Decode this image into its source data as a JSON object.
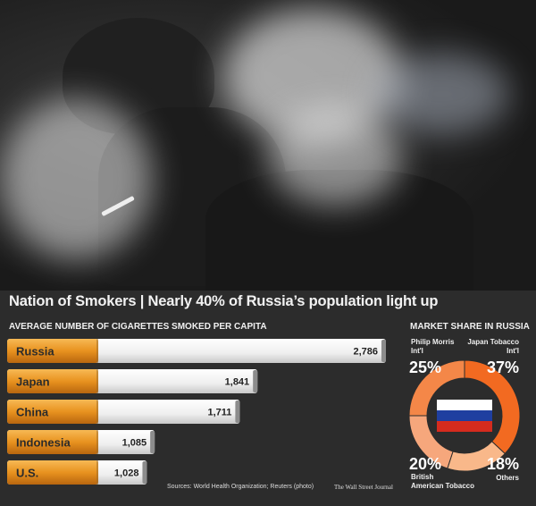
{
  "headline": "Nation of Smokers | Nearly 40% of Russia’s population light up",
  "footer": {
    "sources": "Sources: World Health Organization; Reuters (photo)",
    "credit": "The Wall Street Journal"
  },
  "chart_data": [
    {
      "type": "bar",
      "title": "AVERAGE NUMBER OF CIGARETTES SMOKED PER CAPITA",
      "categories": [
        "Russia",
        "Japan",
        "China",
        "Indonesia",
        "U.S."
      ],
      "values": [
        2786,
        1841,
        1711,
        1085,
        1028
      ],
      "value_labels": [
        "2,786",
        "1,841",
        "1,711",
        "1,085",
        "1,028"
      ],
      "style": "cigarette-bars"
    },
    {
      "type": "pie",
      "title": "MARKET SHARE IN RUSSIA",
      "center_icon": "russian-flag",
      "slices": [
        {
          "label": "Japan Tobacco Int'l",
          "value": 37,
          "value_label": "37%",
          "color": "#f26a21"
        },
        {
          "label": "Others",
          "value": 18,
          "value_label": "18%",
          "color": "#f9b88a"
        },
        {
          "label": "British American Tobacco",
          "value": 20,
          "value_label": "20%",
          "color": "#f6a77c"
        },
        {
          "label": "Philip Morris Int'l",
          "value": 25,
          "value_label": "25%",
          "color": "#f48748"
        }
      ],
      "flag_colors": [
        "#ffffff",
        "#1f3fa0",
        "#d52b1e"
      ]
    }
  ]
}
